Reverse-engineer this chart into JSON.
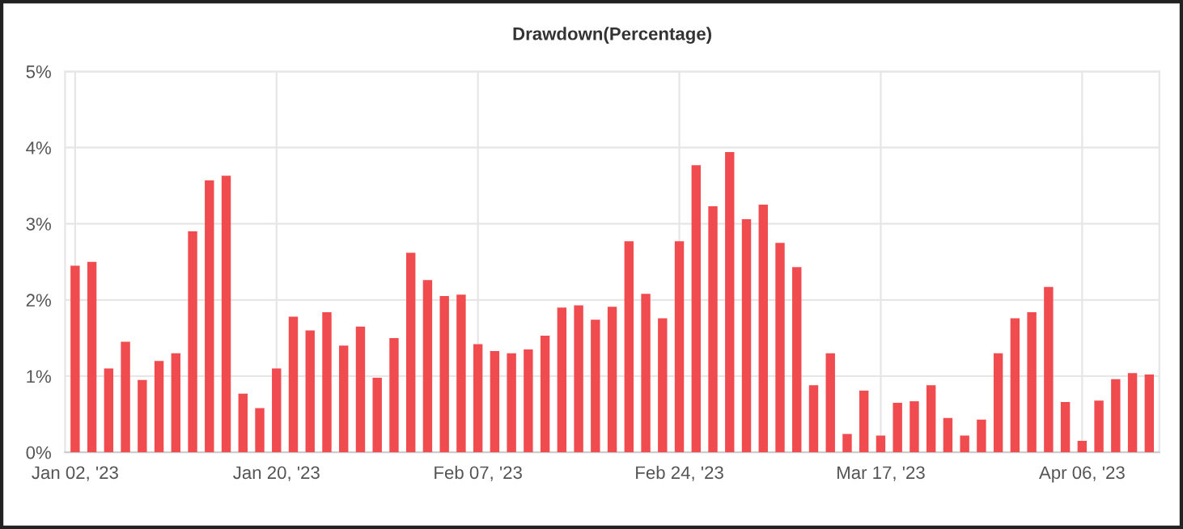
{
  "chart_data": {
    "type": "bar",
    "title": "Drawdown(Percentage)",
    "categories": [
      "Jan 02, '23",
      null,
      null,
      null,
      null,
      null,
      null,
      null,
      null,
      null,
      null,
      null,
      "Jan 20, '23",
      null,
      null,
      null,
      null,
      null,
      null,
      null,
      null,
      null,
      null,
      null,
      "Feb 07, '23",
      null,
      null,
      null,
      null,
      null,
      null,
      null,
      null,
      null,
      null,
      null,
      "Feb 24, '23",
      null,
      null,
      null,
      null,
      null,
      null,
      null,
      null,
      null,
      null,
      null,
      "Mar 17, '23",
      null,
      null,
      null,
      null,
      null,
      null,
      null,
      null,
      null,
      null,
      null,
      "Apr 06, '23",
      null,
      null,
      null,
      null
    ],
    "values": [
      2.45,
      2.5,
      1.1,
      1.45,
      0.95,
      1.2,
      1.3,
      2.9,
      3.57,
      3.63,
      0.77,
      0.58,
      1.1,
      1.78,
      1.6,
      1.84,
      1.4,
      1.65,
      0.98,
      1.5,
      2.62,
      2.26,
      2.05,
      2.07,
      1.42,
      1.33,
      1.3,
      1.35,
      1.53,
      1.9,
      1.93,
      1.74,
      1.91,
      2.77,
      2.08,
      1.76,
      2.77,
      3.77,
      3.23,
      3.94,
      3.06,
      3.25,
      2.75,
      2.43,
      0.88,
      1.3,
      0.24,
      0.81,
      0.22,
      0.65,
      0.67,
      0.88,
      0.45,
      0.22,
      0.43,
      1.3,
      1.76,
      1.84,
      2.17,
      0.66,
      0.15,
      0.68,
      0.96,
      1.04,
      1.02
    ],
    "color": "#f04b4f",
    "ylim": [
      0,
      5
    ],
    "yticks": [
      {
        "value": 0,
        "label": "0%"
      },
      {
        "value": 1,
        "label": "1%"
      },
      {
        "value": 2,
        "label": "2%"
      },
      {
        "value": 3,
        "label": "3%"
      },
      {
        "value": 4,
        "label": "4%"
      },
      {
        "value": 5,
        "label": "5%"
      }
    ],
    "grid": true
  }
}
